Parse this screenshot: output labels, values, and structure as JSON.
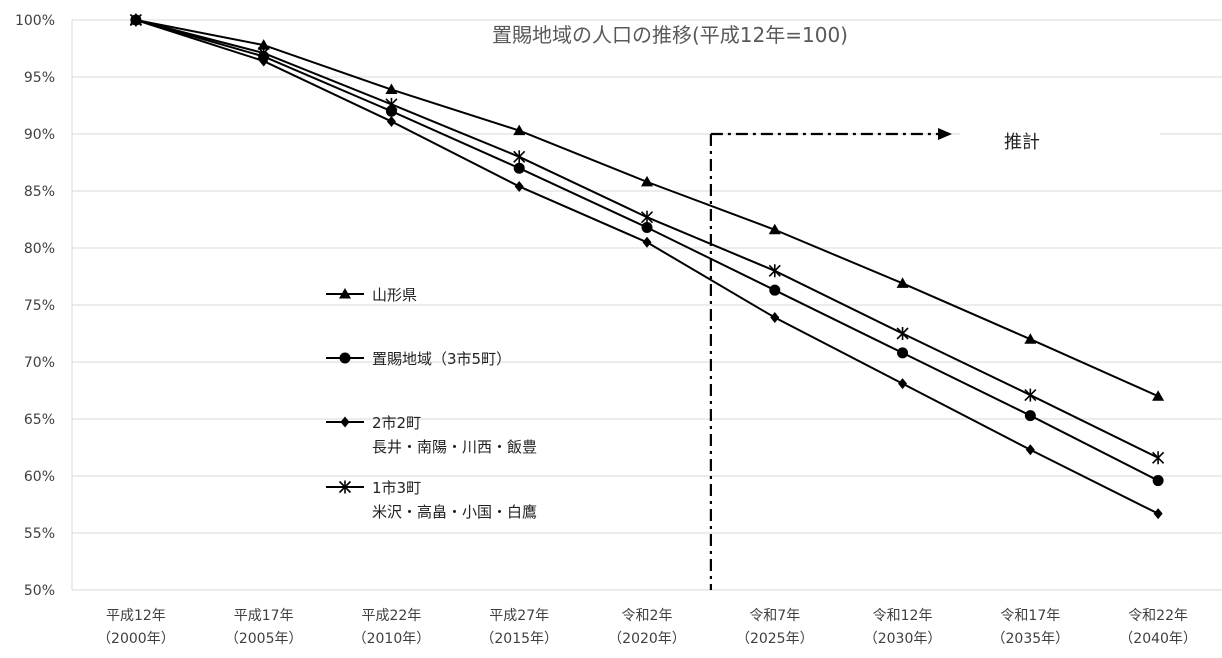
{
  "chart_data": {
    "type": "line",
    "title": "置賜地域の人口の推移(平成12年=100)",
    "categories": [
      [
        "平成12年",
        "（2000年）"
      ],
      [
        "平成17年",
        "（2005年）"
      ],
      [
        "平成22年",
        "（2010年）"
      ],
      [
        "平成27年",
        "（2015年）"
      ],
      [
        "令和2年",
        "（2020年）"
      ],
      [
        "令和7年",
        "（2025年）"
      ],
      [
        "令和12年",
        "（2030年）"
      ],
      [
        "令和17年",
        "（2035年）"
      ],
      [
        "令和22年",
        "（2040年）"
      ]
    ],
    "y_ticks": [
      "100%",
      "95%",
      "90%",
      "85%",
      "80%",
      "75%",
      "70%",
      "65%",
      "60%",
      "55%",
      "50%"
    ],
    "ylim": [
      50,
      100
    ],
    "grid": true,
    "series": [
      {
        "name": [
          "山形県"
        ],
        "marker": "triangle",
        "values": [
          100,
          97.8,
          93.9,
          90.3,
          85.8,
          81.6,
          76.9,
          72.0,
          67.0
        ]
      },
      {
        "name": [
          "置賜地域（3市5町）"
        ],
        "marker": "circle",
        "values": [
          100,
          96.8,
          92.0,
          87.0,
          81.8,
          76.3,
          70.8,
          65.3,
          59.6
        ]
      },
      {
        "name": [
          "2市2町",
          "長井・南陽・川西・飯豊"
        ],
        "marker": "diamond",
        "values": [
          100,
          96.4,
          91.1,
          85.4,
          80.5,
          73.9,
          68.1,
          62.3,
          56.7
        ]
      },
      {
        "name": [
          "1市3町",
          "米沢・高畠・小国・白鷹"
        ],
        "marker": "star",
        "values": [
          100,
          97.1,
          92.6,
          88.0,
          82.7,
          78.0,
          72.5,
          67.1,
          61.6
        ]
      }
    ],
    "annotation": {
      "label": "推計",
      "start_after_category": 4
    },
    "colors": {
      "series": "#000000",
      "grid": "#d9d9d9",
      "axis_text": "#404040"
    }
  }
}
